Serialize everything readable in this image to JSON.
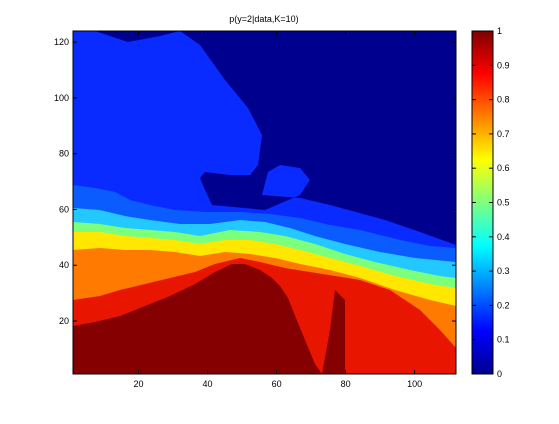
{
  "chart_data": {
    "type": "heatmap",
    "title": "p(y=2|data,K=10)",
    "xlabel": "",
    "ylabel": "",
    "xlim": [
      1,
      112
    ],
    "ylim": [
      1,
      124
    ],
    "x_ticks": [
      "20",
      "40",
      "60",
      "80",
      "100"
    ],
    "y_ticks": [
      "20",
      "40",
      "60",
      "80",
      "100",
      "120"
    ],
    "colorbar": {
      "colormap": "jet",
      "range": [
        0,
        1
      ],
      "ticks": [
        "0",
        "0.1",
        "0.2",
        "0.3",
        "0.4",
        "0.5",
        "0.6",
        "0.7",
        "0.8",
        "0.9",
        "1"
      ]
    },
    "regions": [
      {
        "label": "upper area",
        "value": 0.03
      },
      {
        "label": "upper-left area",
        "value": 0.12
      },
      {
        "label": "transition band (y ≈ 50–60)",
        "value_range": [
          0.3,
          0.6
        ]
      },
      {
        "label": "band near y ≈ 40–50",
        "value_range": [
          0.7,
          0.85
        ]
      },
      {
        "label": "lower-middle peak",
        "value": 1.0
      },
      {
        "label": "lower-right area",
        "value": 0.85
      }
    ],
    "grid": false
  },
  "colors": {
    "jet_0": "#00008F",
    "jet_1": "#800000",
    "axis": "#000000",
    "background": "#ffffff"
  }
}
